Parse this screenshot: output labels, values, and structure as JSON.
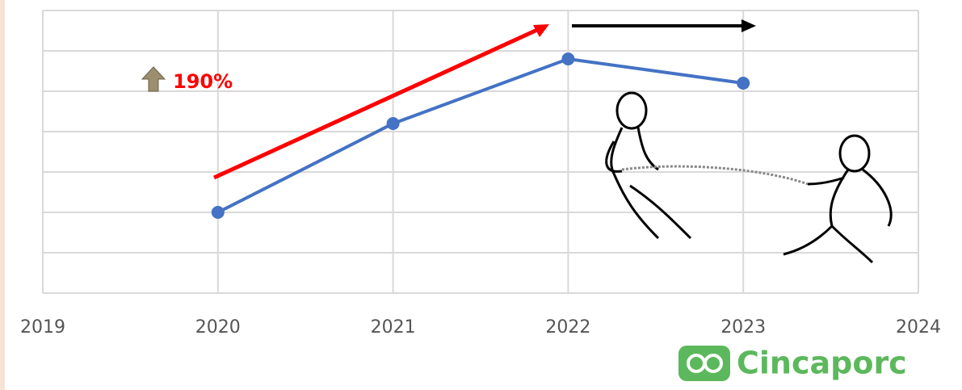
{
  "chart_data": {
    "type": "line",
    "x": [
      2020,
      2021,
      2022,
      2023
    ],
    "series": [
      {
        "color": "#4472c4",
        "values": [
          100,
          210,
          290,
          260
        ]
      }
    ],
    "xlim": [
      2019,
      2024
    ],
    "xticks": [
      2019,
      2020,
      2021,
      2022,
      2023,
      2024
    ],
    "ylim": [
      0,
      350
    ],
    "yticks": [
      0,
      50,
      100,
      150,
      200,
      250,
      300,
      350
    ],
    "grid": true,
    "annotation": "190%",
    "logo": "Cincaporc"
  }
}
